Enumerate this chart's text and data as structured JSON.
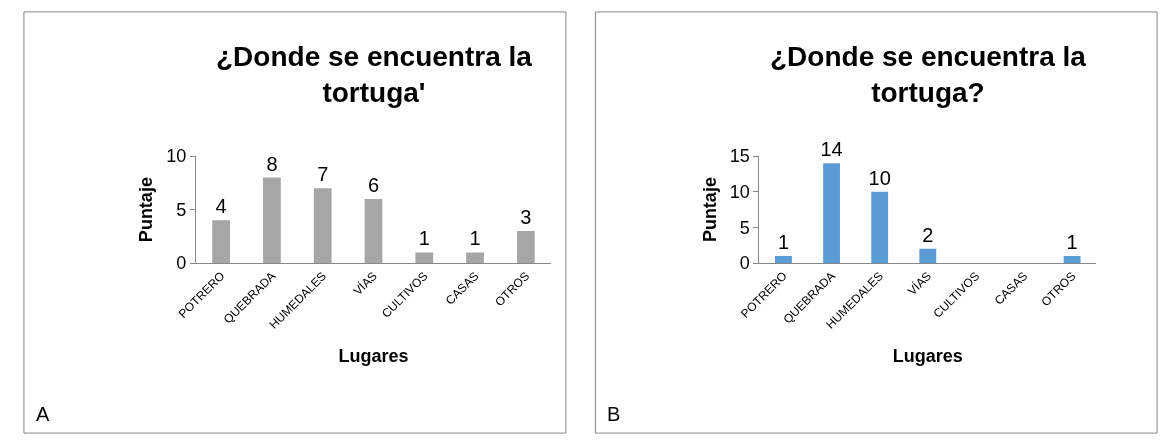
{
  "chart_data": [
    {
      "type": "bar",
      "title": "¿Donde se encuentra la tortuga'",
      "xlabel": "Lugares",
      "ylabel": "Puntaje",
      "categories": [
        "POTRERO",
        "QUEBRADA",
        "HUMEDALES",
        "VÍAS",
        "CULTIVOS",
        "CASAS",
        "OTROS"
      ],
      "values": [
        4,
        8,
        7,
        6,
        1,
        1,
        3
      ],
      "color": "#a6a6a6",
      "ylim": [
        0,
        10
      ],
      "yticks": [
        0,
        5,
        10
      ],
      "data_labels": true,
      "annotations": [
        "A"
      ]
    },
    {
      "type": "bar",
      "title": "¿Donde se encuentra la tortuga?",
      "xlabel": "Lugares",
      "ylabel": "Puntaje",
      "categories": [
        "POTRERO",
        "QUEBRADA",
        "HUMEDALES",
        "VÍAS",
        "CULTIVOS",
        "CASAS",
        "OTROS"
      ],
      "values": [
        1,
        14,
        10,
        2,
        0,
        0,
        1
      ],
      "color": "#5b9bd5",
      "ylim": [
        0,
        15
      ],
      "yticks": [
        0,
        5,
        10,
        15
      ],
      "value_labels": [
        "1",
        "14",
        "10",
        "2",
        null,
        null,
        "1"
      ],
      "annotations": [
        "B"
      ]
    }
  ]
}
